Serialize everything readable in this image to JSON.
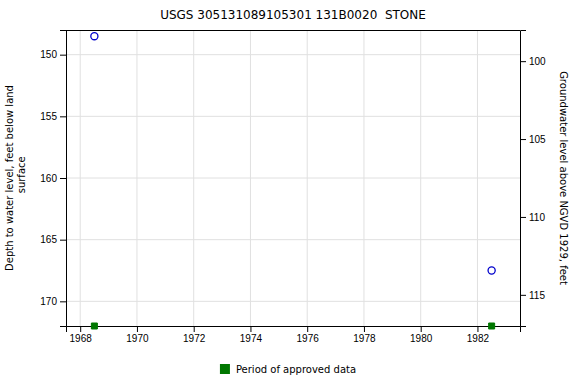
{
  "chart_data": {
    "type": "scatter",
    "title": "USGS 305131089105301 131B0020  STONE",
    "x": [
      1968.5,
      1982.5
    ],
    "series": [
      {
        "values": [
          148.5,
          167.5
        ],
        "color": "#0000cc",
        "marker": "circle"
      }
    ],
    "approved_data": {
      "name": "Period of approved data",
      "x": [
        1968.5,
        1982.5
      ],
      "color": "#007700",
      "marker": "square"
    },
    "xlim": [
      1967.5,
      1983.5
    ],
    "xticks": [
      1968,
      1970,
      1972,
      1974,
      1976,
      1978,
      1980,
      1982
    ],
    "ylim": [
      172,
      148
    ],
    "yticks": [
      150,
      155,
      160,
      165,
      170
    ],
    "y2lim": [
      117,
      98
    ],
    "y2ticks": [
      115,
      110,
      105,
      100
    ],
    "ylabel": "Depth to water level, feet below land\n  surface",
    "y2label": "Groundwater level above NGVD 1929, feet",
    "grid": true,
    "legend": "bottom"
  }
}
